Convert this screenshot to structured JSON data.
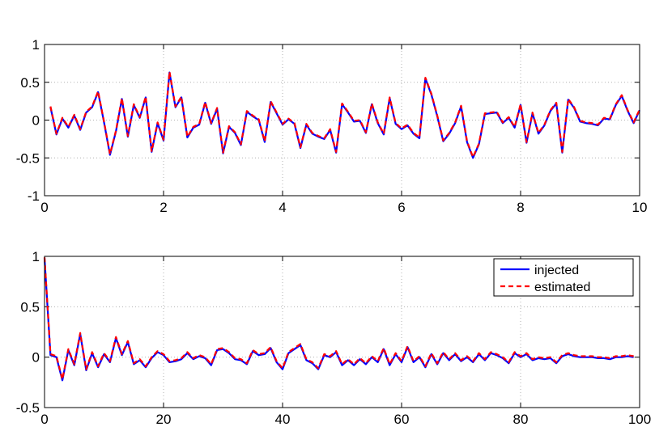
{
  "colors": {
    "injected": "#0000ff",
    "estimated": "#ff0000"
  },
  "chart_data": [
    {
      "type": "line",
      "title": "",
      "xlabel": "",
      "ylabel": "",
      "xlim": [
        0,
        10
      ],
      "ylim": [
        -1,
        1
      ],
      "grid": true,
      "xticks": [
        "0",
        "2",
        "4",
        "6",
        "8",
        "10"
      ],
      "yticks": [
        "-1",
        "-0.5",
        "0",
        "0.5",
        "1"
      ],
      "x": [
        0.1,
        0.2,
        0.3,
        0.4,
        0.5,
        0.6,
        0.7,
        0.8,
        0.9,
        1.0,
        1.1,
        1.2,
        1.3,
        1.4,
        1.5,
        1.6,
        1.7,
        1.8,
        1.9,
        2.0,
        2.1,
        2.2,
        2.3,
        2.4,
        2.5,
        2.6,
        2.7,
        2.8,
        2.9,
        3.0,
        3.1,
        3.2,
        3.3,
        3.4,
        3.5,
        3.6,
        3.7,
        3.8,
        3.9,
        4.0,
        4.1,
        4.2,
        4.3,
        4.4,
        4.5,
        4.6,
        4.7,
        4.8,
        4.9,
        5.0,
        5.1,
        5.2,
        5.3,
        5.4,
        5.5,
        5.6,
        5.7,
        5.8,
        5.9,
        6.0,
        6.1,
        6.2,
        6.3,
        6.4,
        6.5,
        6.6,
        6.7,
        6.8,
        6.9,
        7.0,
        7.1,
        7.2,
        7.3,
        7.4,
        7.5,
        7.6,
        7.7,
        7.8,
        7.9,
        8.0,
        8.1,
        8.2,
        8.3,
        8.4,
        8.5,
        8.6,
        8.7,
        8.8,
        8.9,
        9.0,
        9.1,
        9.2,
        9.3,
        9.4,
        9.5,
        9.6,
        9.7,
        9.8,
        9.9,
        10.0
      ],
      "series": [
        {
          "name": "injected",
          "values": [
            0.17,
            -0.19,
            0.02,
            -0.1,
            0.06,
            -0.13,
            0.1,
            0.17,
            0.37,
            -0.03,
            -0.46,
            -0.15,
            0.28,
            -0.22,
            0.2,
            0.03,
            0.3,
            -0.42,
            -0.04,
            -0.27,
            0.63,
            0.17,
            0.3,
            -0.23,
            -0.1,
            -0.06,
            0.23,
            -0.05,
            0.15,
            -0.44,
            -0.09,
            -0.17,
            -0.33,
            0.11,
            0.05,
            0.0,
            -0.29,
            0.24,
            0.09,
            -0.06,
            0.01,
            -0.05,
            -0.37,
            -0.06,
            -0.18,
            -0.22,
            -0.25,
            -0.13,
            -0.43,
            0.21,
            0.1,
            -0.02,
            -0.01,
            -0.17,
            0.21,
            -0.04,
            -0.19,
            0.29,
            -0.05,
            -0.12,
            -0.07,
            -0.18,
            -0.24,
            0.55,
            0.34,
            0.05,
            -0.28,
            -0.18,
            -0.04,
            0.18,
            -0.29,
            -0.5,
            -0.32,
            0.08,
            0.09,
            0.1,
            -0.04,
            0.03,
            -0.1,
            0.2,
            -0.3,
            0.09,
            -0.18,
            -0.07,
            0.12,
            0.22,
            -0.43,
            0.27,
            0.16,
            -0.02,
            -0.04,
            -0.05,
            -0.07,
            0.02,
            0.01,
            0.2,
            0.32,
            0.12,
            -0.04,
            0.13
          ]
        },
        {
          "name": "estimated",
          "values": [
            0.18,
            -0.18,
            0.03,
            -0.09,
            0.07,
            -0.12,
            0.11,
            0.18,
            0.38,
            -0.02,
            -0.45,
            -0.14,
            0.29,
            -0.21,
            0.21,
            0.04,
            0.31,
            -0.41,
            -0.03,
            -0.26,
            0.64,
            0.18,
            0.31,
            -0.22,
            -0.09,
            -0.05,
            0.24,
            -0.04,
            0.16,
            -0.43,
            -0.08,
            -0.16,
            -0.32,
            0.12,
            0.06,
            0.01,
            -0.28,
            0.25,
            0.1,
            -0.05,
            0.02,
            -0.04,
            -0.36,
            -0.05,
            -0.17,
            -0.21,
            -0.24,
            -0.12,
            -0.42,
            0.22,
            0.11,
            -0.01,
            0.0,
            -0.16,
            0.22,
            -0.03,
            -0.18,
            0.3,
            -0.04,
            -0.11,
            -0.06,
            -0.17,
            -0.23,
            0.56,
            0.35,
            0.06,
            -0.27,
            -0.17,
            -0.03,
            0.19,
            -0.28,
            -0.49,
            -0.31,
            0.09,
            0.1,
            0.11,
            -0.03,
            0.04,
            -0.09,
            0.21,
            -0.29,
            0.1,
            -0.17,
            -0.06,
            0.13,
            0.23,
            -0.42,
            0.28,
            0.17,
            -0.01,
            -0.03,
            -0.04,
            -0.06,
            0.03,
            0.02,
            0.21,
            0.33,
            0.13,
            -0.03,
            0.14
          ]
        }
      ]
    },
    {
      "type": "line",
      "title": "",
      "xlabel": "",
      "ylabel": "",
      "xlim": [
        0,
        100
      ],
      "ylim": [
        -0.5,
        1
      ],
      "grid": true,
      "legend": "top-right",
      "xticks": [
        "0",
        "20",
        "40",
        "60",
        "80",
        "100"
      ],
      "yticks": [
        "-0.5",
        "0",
        "0.5",
        "1"
      ],
      "x": [
        0,
        1,
        2,
        3,
        4,
        5,
        6,
        7,
        8,
        9,
        10,
        11,
        12,
        13,
        14,
        15,
        16,
        17,
        18,
        19,
        20,
        21,
        22,
        23,
        24,
        25,
        26,
        27,
        28,
        29,
        30,
        31,
        32,
        33,
        34,
        35,
        36,
        37,
        38,
        39,
        40,
        41,
        42,
        43,
        44,
        45,
        46,
        47,
        48,
        49,
        50,
        51,
        52,
        53,
        54,
        55,
        56,
        57,
        58,
        59,
        60,
        61,
        62,
        63,
        64,
        65,
        66,
        67,
        68,
        69,
        70,
        71,
        72,
        73,
        74,
        75,
        76,
        77,
        78,
        79,
        80,
        81,
        82,
        83,
        84,
        85,
        86,
        87,
        88,
        89,
        90,
        91,
        92,
        93,
        94,
        95,
        96,
        97,
        98,
        99
      ],
      "series": [
        {
          "name": "injected",
          "values": [
            0.98,
            0.02,
            0.0,
            -0.23,
            0.07,
            -0.08,
            0.23,
            -0.13,
            0.04,
            -0.1,
            0.03,
            -0.05,
            0.19,
            0.02,
            0.15,
            -0.07,
            -0.03,
            -0.1,
            -0.01,
            0.05,
            0.02,
            -0.05,
            -0.04,
            -0.02,
            0.04,
            -0.02,
            0.01,
            -0.01,
            -0.08,
            0.07,
            0.08,
            0.04,
            -0.02,
            -0.03,
            -0.07,
            0.06,
            0.02,
            0.03,
            0.09,
            -0.05,
            -0.12,
            0.04,
            0.08,
            0.12,
            -0.03,
            -0.06,
            -0.12,
            0.02,
            0.0,
            0.05,
            -0.08,
            -0.03,
            -0.08,
            -0.02,
            -0.07,
            0.0,
            -0.05,
            0.08,
            -0.08,
            0.03,
            -0.05,
            0.1,
            -0.05,
            0.0,
            -0.1,
            0.03,
            -0.07,
            0.04,
            -0.03,
            0.03,
            -0.04,
            0.0,
            -0.05,
            0.03,
            -0.03,
            0.04,
            0.02,
            -0.01,
            -0.06,
            0.04,
            0.0,
            0.03,
            -0.03,
            -0.01,
            -0.02,
            -0.01,
            -0.06,
            0.01,
            0.03,
            0.01,
            0.0,
            0.0,
            0.0,
            -0.01,
            -0.01,
            -0.02,
            0.0,
            0.0,
            0.01,
            0.0
          ]
        },
        {
          "name": "estimated",
          "values": [
            0.99,
            0.03,
            0.01,
            -0.22,
            0.08,
            -0.07,
            0.24,
            -0.12,
            0.05,
            -0.09,
            0.04,
            -0.04,
            0.2,
            0.03,
            0.16,
            -0.06,
            -0.02,
            -0.09,
            0.0,
            0.06,
            0.03,
            -0.04,
            -0.03,
            -0.01,
            0.05,
            -0.01,
            0.02,
            0.0,
            -0.07,
            0.08,
            0.09,
            0.05,
            -0.01,
            -0.02,
            -0.06,
            0.07,
            0.03,
            0.04,
            0.1,
            -0.04,
            -0.11,
            0.05,
            0.09,
            0.13,
            -0.02,
            -0.05,
            -0.11,
            0.03,
            0.01,
            0.06,
            -0.07,
            -0.02,
            -0.07,
            -0.01,
            -0.06,
            0.01,
            -0.04,
            0.09,
            -0.07,
            0.04,
            -0.04,
            0.11,
            -0.04,
            0.01,
            -0.09,
            0.04,
            -0.06,
            0.05,
            -0.02,
            0.04,
            -0.03,
            0.01,
            -0.04,
            0.04,
            -0.02,
            0.05,
            0.03,
            0.0,
            -0.05,
            0.05,
            0.01,
            0.04,
            -0.02,
            0.0,
            -0.01,
            0.0,
            -0.05,
            0.02,
            0.04,
            0.02,
            0.01,
            0.01,
            0.01,
            0.0,
            0.0,
            -0.01,
            0.01,
            0.01,
            0.02,
            0.01
          ]
        }
      ]
    }
  ]
}
